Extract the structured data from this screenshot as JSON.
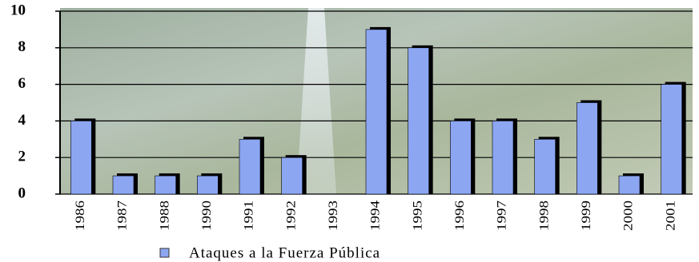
{
  "chart_data": {
    "type": "bar",
    "categories": [
      "1986",
      "1987",
      "1988",
      "1990",
      "1991",
      "1992",
      "1993",
      "1994",
      "1995",
      "1996",
      "1997",
      "1998",
      "1999",
      "2000",
      "2001"
    ],
    "series": [
      {
        "name": "Ataques a la Fuerza Pública",
        "color": "#8ca6f2",
        "values": [
          4,
          1,
          1,
          1,
          3,
          2,
          0,
          9,
          8,
          4,
          4,
          3,
          5,
          1,
          6
        ]
      }
    ],
    "ylim": [
      0,
      10
    ],
    "yticks": [
      0,
      2,
      4,
      6,
      8,
      10
    ],
    "grid": true
  }
}
